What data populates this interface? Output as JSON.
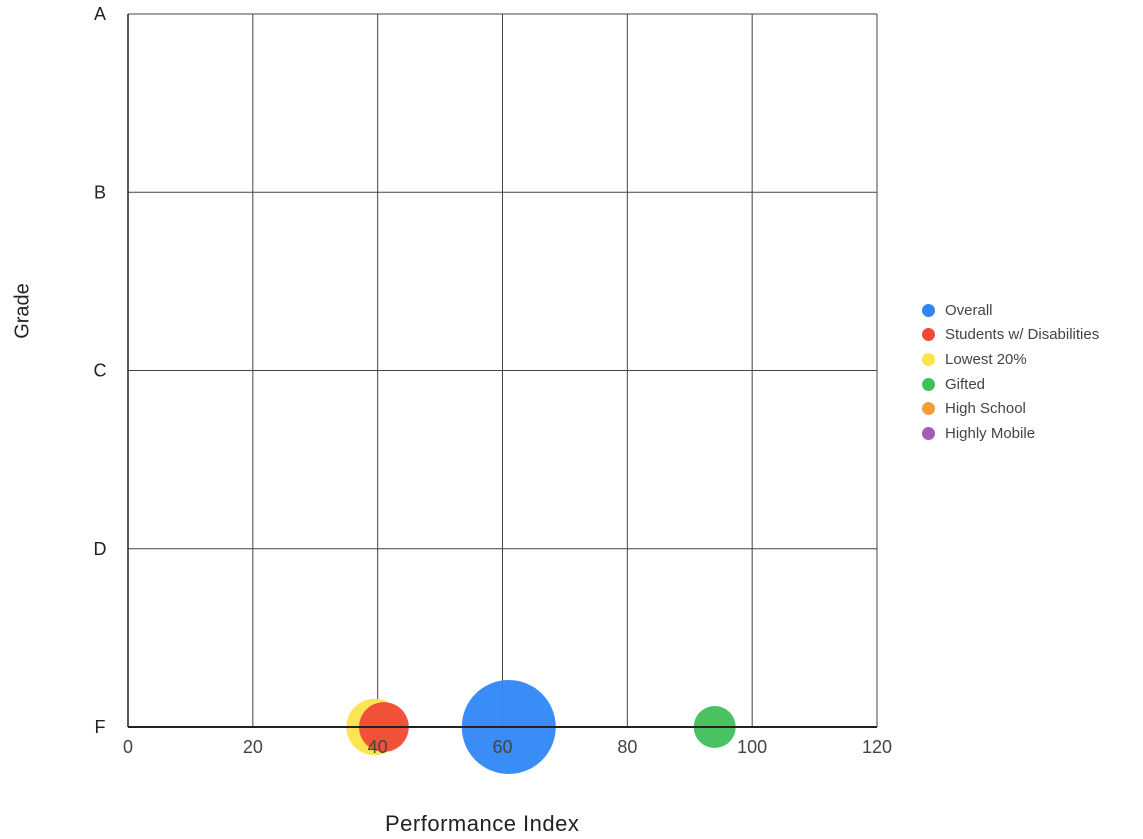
{
  "chart_data": {
    "type": "scatter",
    "xlabel": "Performance Index",
    "ylabel": "Grade",
    "xlim": [
      0,
      120
    ],
    "xticks": [
      0,
      20,
      40,
      60,
      80,
      100,
      120
    ],
    "ycategories": [
      "F",
      "D",
      "C",
      "B",
      "A"
    ],
    "grid": true,
    "legend_position": "right",
    "series": [
      {
        "name": "Overall",
        "color": "#2f87f5",
        "points": [
          {
            "x": 61,
            "y": "F",
            "size": 100
          }
        ]
      },
      {
        "name": "Students w/ Disabilities",
        "color": "#f04a36",
        "points": [
          {
            "x": 41,
            "y": "F",
            "size": 28
          }
        ]
      },
      {
        "name": "Lowest 20%",
        "color": "#fbe44a",
        "points": [
          {
            "x": 39.5,
            "y": "F",
            "size": 36
          }
        ]
      },
      {
        "name": "Gifted",
        "color": "#3fc05a",
        "points": [
          {
            "x": 94,
            "y": "F",
            "size": 20
          }
        ]
      },
      {
        "name": "High School",
        "color": "#f99b36",
        "points": []
      },
      {
        "name": "Highly Mobile",
        "color": "#a65bbb",
        "points": []
      }
    ]
  }
}
